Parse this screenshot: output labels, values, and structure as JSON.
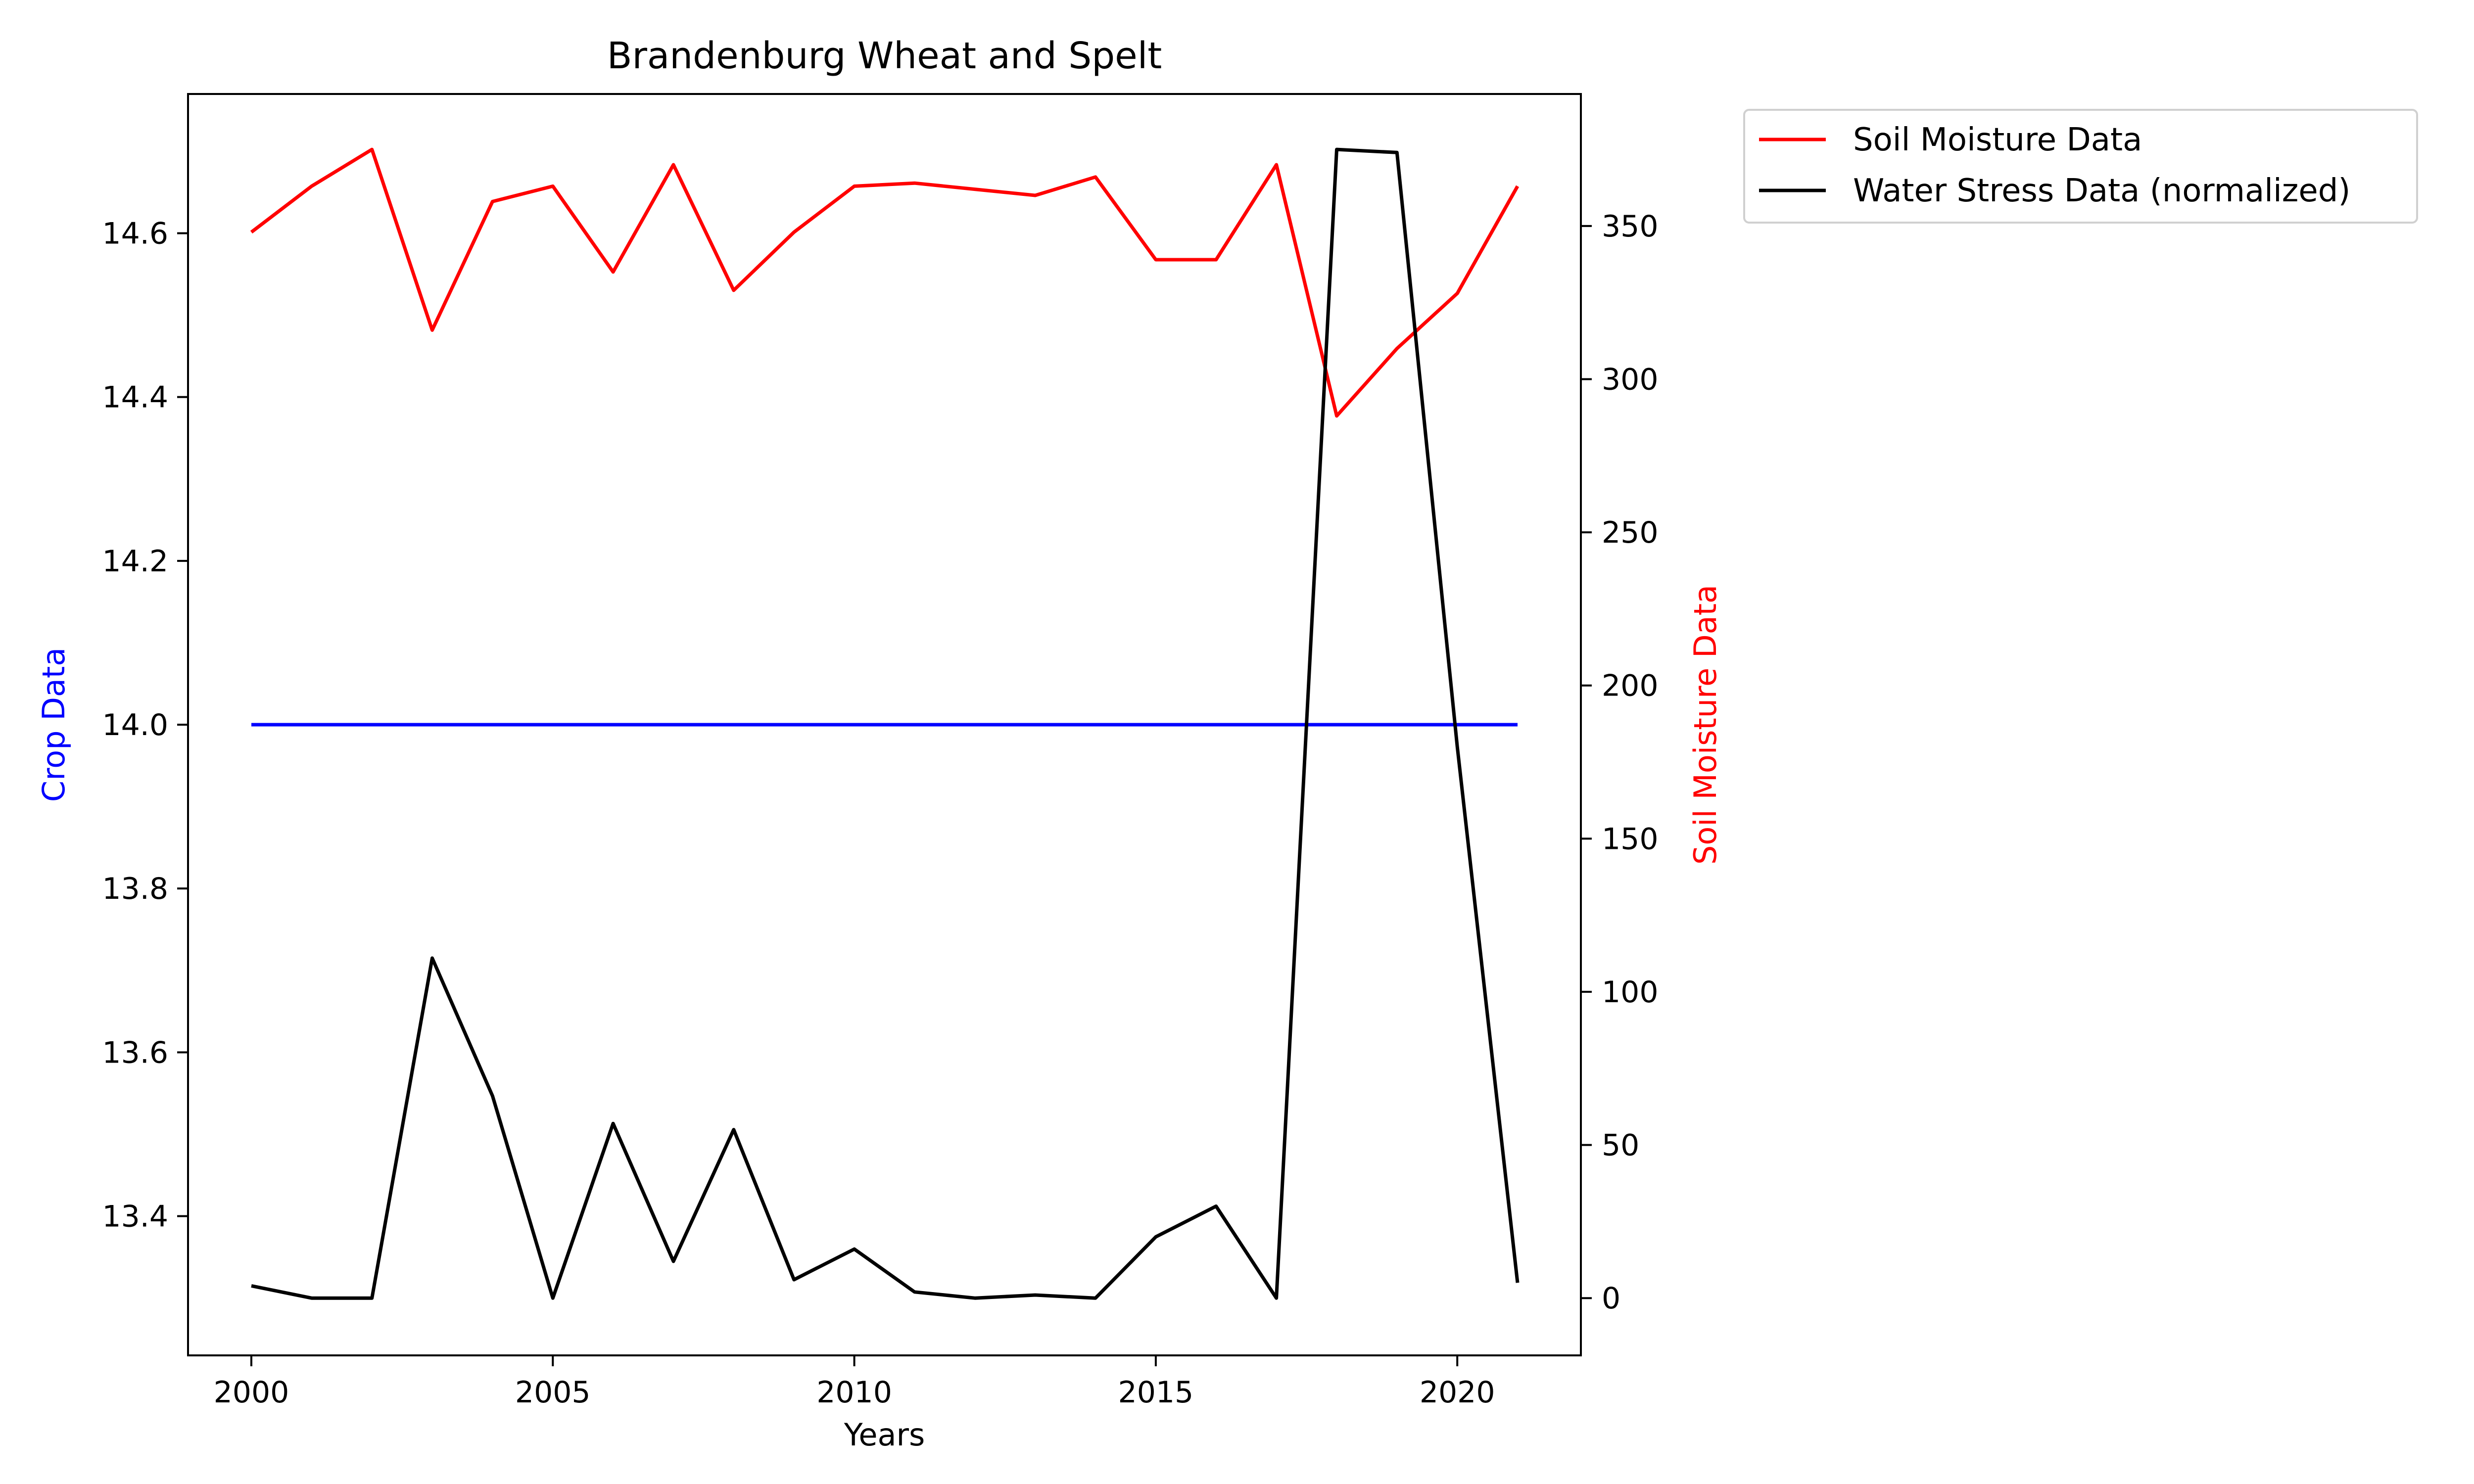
{
  "chart_data": {
    "type": "line",
    "title": "Brandenburg Wheat and Spelt",
    "xlabel": "Years",
    "ylabel_left": "Crop Data",
    "ylabel_right": "Soil Moisture Data",
    "xlim": [
      1998.95,
      2022.05
    ],
    "ylim_left": [
      13.23,
      14.77
    ],
    "ylim_right": [
      -18.7,
      393.1
    ],
    "x_ticks": [
      2000,
      2005,
      2010,
      2015,
      2020
    ],
    "x_tick_labels": [
      "2000",
      "2005",
      "2010",
      "2015",
      "2020"
    ],
    "y_left_ticks": [
      13.4,
      13.6,
      13.8,
      14.0,
      14.2,
      14.4,
      14.6
    ],
    "y_left_tick_labels": [
      "13.4",
      "13.6",
      "13.8",
      "14.0",
      "14.2",
      "14.4",
      "14.6"
    ],
    "y_right_ticks": [
      0,
      50,
      100,
      150,
      200,
      250,
      300,
      350
    ],
    "y_right_tick_labels": [
      "0",
      "50",
      "100",
      "150",
      "200",
      "250",
      "300",
      "350"
    ],
    "x": [
      2000,
      2001,
      2002,
      2003,
      2004,
      2005,
      2006,
      2007,
      2008,
      2009,
      2010,
      2011,
      2012,
      2013,
      2014,
      2015,
      2016,
      2017,
      2018,
      2019,
      2020,
      2021
    ],
    "series": [
      {
        "axis": "left",
        "color": "#0000ff",
        "values": [
          14.0,
          14.0,
          14.0,
          14.0,
          14.0,
          14.0,
          14.0,
          14.0,
          14.0,
          14.0,
          14.0,
          14.0,
          14.0,
          14.0,
          14.0,
          14.0,
          14.0,
          14.0,
          14.0,
          14.0,
          14.0,
          14.0
        ]
      },
      {
        "name": "Soil Moisture Data",
        "axis": "right",
        "color": "#ff0000",
        "values": [
          348,
          363,
          375,
          316,
          358,
          363,
          335,
          370,
          329,
          348,
          363,
          364,
          362,
          360,
          366,
          339,
          339,
          370,
          288,
          310,
          328,
          363
        ]
      },
      {
        "name": "Water Stress Data (normalized)",
        "axis": "right",
        "color": "#000000",
        "values": [
          4,
          0,
          0,
          111,
          66,
          0,
          57,
          12,
          55,
          6,
          16,
          2,
          0,
          1,
          0,
          20,
          30,
          0,
          375,
          374,
          180,
          5
        ]
      }
    ],
    "grid": false,
    "legend": {
      "position": "outside-top-right",
      "entries": [
        "Soil Moisture Data",
        "Water Stress Data (normalized)"
      ]
    },
    "colors": {
      "left_axis_label": "#0000ff",
      "right_axis_label": "#ff0000"
    }
  }
}
